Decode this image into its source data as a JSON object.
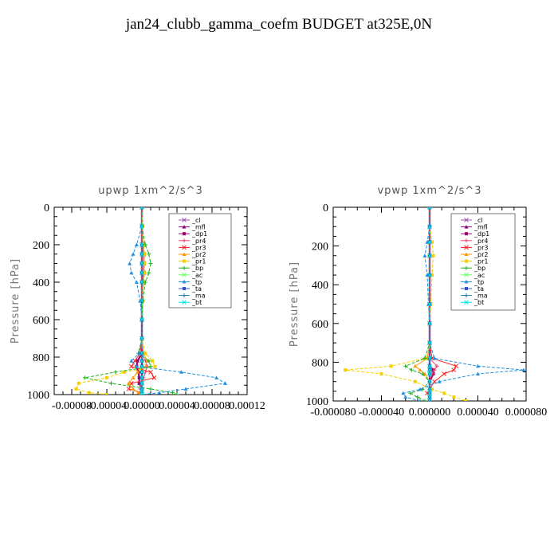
{
  "title": "jan24_clubb_gamma_coefm  BUDGET at325E,0N",
  "chart_data": [
    {
      "type": "line",
      "title": "upwp   1xm^2/s^3",
      "ylabel": "Pressure [hPa]",
      "xlabel": "",
      "xlim": [
        -0.0001,
        0.00012
      ],
      "ylim": [
        1000,
        0
      ],
      "x_ticks": [
        "-0.00008",
        "-0.00004",
        "0.00000",
        "0.00004",
        "0.00008",
        "0.00012"
      ],
      "x_tick_values": [
        -8e-05,
        -4e-05,
        0,
        4e-05,
        8e-05,
        0.00012
      ],
      "y_ticks": [
        "0",
        "200",
        "400",
        "600",
        "800",
        "1000"
      ],
      "y_tick_values": [
        0,
        200,
        400,
        600,
        800,
        1000
      ],
      "legend_position": "top-right",
      "pressure_levels": [
        0,
        100,
        200,
        250,
        300,
        350,
        400,
        500,
        600,
        700,
        780,
        820,
        850,
        880,
        910,
        940,
        970,
        990,
        1000
      ],
      "series": [
        {
          "name": "_cl",
          "color": "#9b59b6",
          "values": [
            0,
            0,
            0,
            0,
            0,
            0,
            0,
            0,
            0,
            0,
            0,
            0,
            0,
            0,
            0,
            0,
            0,
            0,
            0
          ]
        },
        {
          "name": "_mfl",
          "color": "#8e0078",
          "values": [
            0,
            0,
            0,
            0,
            0,
            0,
            0,
            0,
            0,
            0,
            0,
            0,
            0,
            0,
            0,
            0,
            0,
            0,
            0
          ]
        },
        {
          "name": "_dp1",
          "color": "#a0006e",
          "values": [
            0,
            0,
            0,
            0,
            0,
            0,
            0,
            0,
            0,
            0,
            0,
            -5e-06,
            -6e-06,
            -4e-06,
            -3e-06,
            -3e-06,
            0,
            0,
            0
          ]
        },
        {
          "name": "_pr4",
          "color": "#e84a6e",
          "values": [
            0,
            0,
            0,
            0,
            0,
            0,
            0,
            0,
            0,
            0,
            0,
            4e-06,
            6e-06,
            4e-06,
            2e-06,
            0,
            -2e-06,
            0,
            0
          ]
        },
        {
          "name": "_pr3",
          "color": "#ff2020",
          "values": [
            0,
            0,
            1e-06,
            2e-06,
            2e-06,
            2e-06,
            1e-06,
            0,
            0,
            0,
            -2e-06,
            -8e-06,
            -1.2e-05,
            1e-05,
            1.4e-05,
            -1.2e-05,
            -1.5e-05,
            0,
            0
          ]
        },
        {
          "name": "_pr2",
          "color": "#ff9900",
          "values": [
            0,
            0,
            0,
            0,
            0,
            0,
            0,
            0,
            0,
            0,
            2e-06,
            6e-06,
            4e-06,
            -5e-06,
            -1e-05,
            -1.5e-05,
            -1e-05,
            -4e-06,
            0
          ]
        },
        {
          "name": "_pr1",
          "color": "#f5d000",
          "values": [
            0,
            1e-06,
            2e-06,
            3e-06,
            3e-06,
            3e-06,
            2e-06,
            1e-06,
            0,
            0,
            4e-06,
            1.2e-05,
            1.5e-05,
            -2e-05,
            -4e-05,
            -7.2e-05,
            -7.5e-05,
            -6e-05,
            -4e-05
          ]
        },
        {
          "name": "_bp",
          "color": "#20b020",
          "values": [
            0,
            0,
            4e-06,
            8e-06,
            1e-05,
            8e-06,
            4e-06,
            1e-06,
            0,
            0,
            -4e-06,
            8e-06,
            1e-05,
            -3e-05,
            -6.5e-05,
            -3.5e-05,
            1e-05,
            3.5e-05,
            4e-05
          ]
        },
        {
          "name": "_ac",
          "color": "#66ff66",
          "values": [
            0,
            0,
            0,
            0,
            0,
            0,
            0,
            0,
            0,
            0,
            0,
            0,
            0,
            0,
            0,
            0,
            0,
            0,
            0
          ]
        },
        {
          "name": "_tp",
          "color": "#2090e0",
          "values": [
            0,
            0,
            -6e-06,
            -1e-05,
            -1.4e-05,
            -1.2e-05,
            -6e-06,
            -2e-06,
            0,
            0,
            -3e-06,
            -1.2e-05,
            -6e-06,
            4.5e-05,
            8.5e-05,
            9.5e-05,
            5e-05,
            2e-05,
            0
          ]
        },
        {
          "name": "_ta",
          "color": "#3050d0",
          "values": [
            0,
            0,
            0,
            0,
            0,
            0,
            0,
            0,
            0,
            0,
            0,
            0,
            0,
            0,
            0,
            0,
            0,
            0,
            0
          ]
        },
        {
          "name": "_ma",
          "color": "#1a7ab8",
          "values": [
            0,
            0,
            0,
            0,
            0,
            0,
            0,
            0,
            0,
            0,
            0,
            0,
            0,
            0,
            0,
            0,
            0,
            0,
            0
          ]
        },
        {
          "name": "_bt",
          "color": "#00e0e0",
          "values": [
            0,
            0,
            0,
            0,
            0,
            0,
            0,
            0,
            0,
            0,
            0,
            0,
            0,
            0,
            0,
            0,
            0,
            0,
            0
          ]
        }
      ]
    },
    {
      "type": "line",
      "title": "vpwp   1xm^2/s^3",
      "ylabel": "Pressure [hPa]",
      "xlabel": "",
      "xlim": [
        -8e-05,
        8e-05
      ],
      "ylim": [
        1000,
        0
      ],
      "x_ticks": [
        "-0.000080",
        "-0.000040",
        "0.000000",
        "0.000040",
        "0.000080"
      ],
      "x_tick_values": [
        -8e-05,
        -4e-05,
        0,
        4e-05,
        8e-05
      ],
      "y_ticks": [
        "0",
        "200",
        "400",
        "600",
        "800",
        "1000"
      ],
      "y_tick_values": [
        0,
        200,
        400,
        600,
        800,
        1000
      ],
      "legend_position": "top-right",
      "pressure_levels": [
        0,
        100,
        180,
        250,
        350,
        500,
        600,
        700,
        780,
        820,
        840,
        860,
        900,
        940,
        960,
        980,
        1000
      ],
      "series": [
        {
          "name": "_cl",
          "color": "#9b59b6",
          "values": [
            0,
            0,
            0,
            0,
            0,
            0,
            0,
            0,
            0,
            0,
            0,
            0,
            0,
            0,
            0,
            0,
            0
          ]
        },
        {
          "name": "_mfl",
          "color": "#8e0078",
          "values": [
            0,
            0,
            0,
            0,
            0,
            0,
            0,
            0,
            0,
            0,
            0,
            0,
            0,
            0,
            0,
            0,
            0
          ]
        },
        {
          "name": "_dp1",
          "color": "#a0006e",
          "values": [
            0,
            0,
            0,
            0,
            0,
            0,
            0,
            0,
            0,
            0,
            3e-06,
            3e-06,
            0,
            0,
            0,
            0,
            0
          ]
        },
        {
          "name": "_pr4",
          "color": "#e84a6e",
          "values": [
            0,
            0,
            0,
            0,
            0,
            0,
            0,
            0,
            0,
            6e-06,
            4e-06,
            2e-06,
            0,
            0,
            0,
            0,
            0
          ]
        },
        {
          "name": "_pr3",
          "color": "#ff2020",
          "values": [
            0,
            0,
            0,
            0,
            0,
            0,
            0,
            0,
            2e-06,
            2.2e-05,
            2e-05,
            1.2e-05,
            4e-06,
            0,
            -2e-06,
            0,
            0
          ]
        },
        {
          "name": "_pr2",
          "color": "#ff9900",
          "values": [
            0,
            0,
            0,
            0,
            0,
            0,
            0,
            0,
            -2e-06,
            -1.2e-05,
            -8e-06,
            -4e-06,
            0,
            0,
            0,
            0,
            0
          ]
        },
        {
          "name": "_pr1",
          "color": "#f5d000",
          "values": [
            0,
            0,
            2e-06,
            3e-06,
            2e-06,
            1e-06,
            0,
            0,
            -4e-06,
            -3.2e-05,
            -7e-05,
            -4e-05,
            -1.2e-05,
            2e-06,
            1.2e-05,
            2e-05,
            3e-05
          ]
        },
        {
          "name": "_bp",
          "color": "#20b020",
          "values": [
            0,
            0,
            0,
            0,
            0,
            0,
            0,
            0,
            -4e-06,
            -2e-05,
            -1.5e-05,
            -6e-06,
            0,
            -6e-06,
            -1.6e-05,
            -1e-05,
            -4e-06
          ]
        },
        {
          "name": "_ac",
          "color": "#66ff66",
          "values": [
            0,
            0,
            0,
            0,
            0,
            0,
            0,
            0,
            0,
            0,
            0,
            0,
            0,
            0,
            0,
            0,
            0
          ]
        },
        {
          "name": "_tp",
          "color": "#2090e0",
          "values": [
            0,
            0,
            -2e-06,
            -4e-06,
            -2e-06,
            -1e-06,
            0,
            0,
            4e-06,
            4e-05,
            7.8e-05,
            4e-05,
            8e-06,
            -8e-06,
            -2.2e-05,
            -2e-05,
            -8e-06
          ]
        },
        {
          "name": "_ta",
          "color": "#3050d0",
          "values": [
            0,
            0,
            0,
            0,
            0,
            0,
            0,
            0,
            0,
            0,
            0,
            0,
            0,
            0,
            0,
            0,
            0
          ]
        },
        {
          "name": "_ma",
          "color": "#1a7ab8",
          "values": [
            0,
            0,
            0,
            0,
            0,
            0,
            0,
            0,
            0,
            0,
            0,
            0,
            0,
            0,
            0,
            0,
            0
          ]
        },
        {
          "name": "_bt",
          "color": "#00e0e0",
          "values": [
            0,
            0,
            0,
            0,
            0,
            0,
            0,
            0,
            0,
            0,
            0,
            0,
            0,
            0,
            0,
            0,
            0
          ]
        }
      ]
    }
  ]
}
